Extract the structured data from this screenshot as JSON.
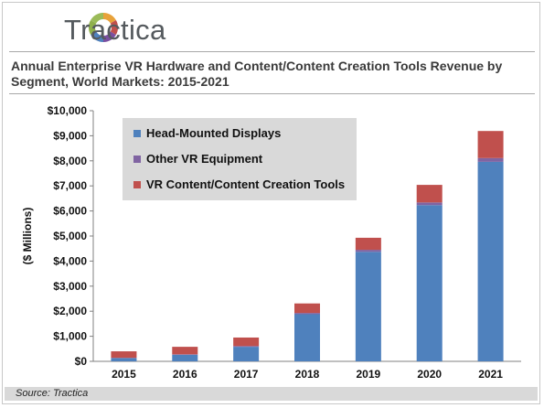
{
  "brand": {
    "name": "Tractica"
  },
  "source": "Source: Tractica",
  "chart_data": {
    "type": "bar",
    "stacked": true,
    "title": "Annual Enterprise VR Hardware and Content/Content Creation Tools Revenue by Segment, World Markets: 2015-2021",
    "xlabel": "",
    "ylabel": "($ Millions)",
    "ylim": [
      0,
      10000
    ],
    "yticks": [
      "$0",
      "$1,000",
      "$2,000",
      "$3,000",
      "$4,000",
      "$5,000",
      "$6,000",
      "$7,000",
      "$8,000",
      "$9,000",
      "$10,000"
    ],
    "categories": [
      "2015",
      "2016",
      "2017",
      "2018",
      "2019",
      "2020",
      "2021"
    ],
    "series": [
      {
        "name": "Head-Mounted Displays",
        "color": "#4f81bd",
        "values": [
          130,
          260,
          580,
          1880,
          4370,
          6230,
          7960
        ]
      },
      {
        "name": "Other VR Equipment",
        "color": "#8064a2",
        "values": [
          10,
          20,
          30,
          50,
          80,
          110,
          150
        ]
      },
      {
        "name": "VR Content/Content Creation Tools",
        "color": "#c0504d",
        "values": [
          260,
          300,
          340,
          380,
          480,
          700,
          1080
        ]
      }
    ],
    "legend_position": "top-left",
    "grid": false
  }
}
